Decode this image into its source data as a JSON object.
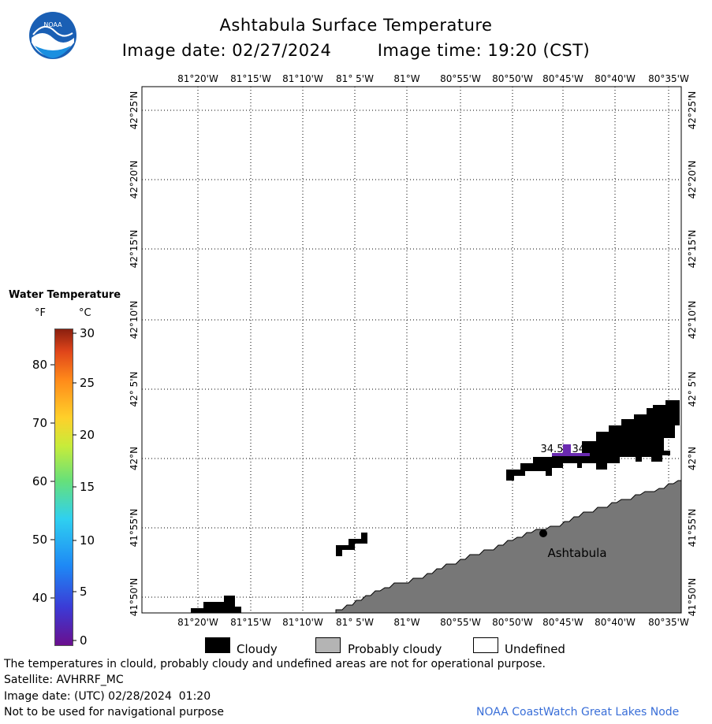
{
  "header": {
    "title": "Ashtabula Surface Temperature",
    "date_label": "Image date: 02/27/2024",
    "time_label": "Image time: 19:20 (CST)"
  },
  "logo": {
    "text": "NOAA"
  },
  "legend": {
    "title": "Water Temperature",
    "unit_f": "°F",
    "unit_c": "°C",
    "f_ticks": [
      "80",
      "70",
      "60",
      "50",
      "40"
    ],
    "c_ticks": [
      "30",
      "25",
      "20",
      "15",
      "10",
      "5",
      "0"
    ],
    "colors": [
      "#6a0f8e",
      "#3b3bd6",
      "#1e88f5",
      "#2fd0f0",
      "#66e07a",
      "#c7ec3a",
      "#ffd02a",
      "#ff8a1a",
      "#e0451a",
      "#8a1f0f"
    ]
  },
  "map": {
    "lon_labels": [
      "81°20'W",
      "81°15'W",
      "81°10'W",
      "81° 5'W",
      "81°W",
      "80°55'W",
      "80°50'W",
      "80°45'W",
      "80°40'W",
      "80°35'W"
    ],
    "lat_labels": [
      "42°25'N",
      "42°20'N",
      "42°15'N",
      "42°10'N",
      "42° 5'N",
      "42°N",
      "41°55'N",
      "41°50'N"
    ],
    "readings": [
      "34.5",
      "34.5"
    ],
    "city": "Ashtabula",
    "colors": {
      "cloudy": "#000000",
      "probably_cloudy": "#777777",
      "reading_bar": "#6a2ab0"
    }
  },
  "key": {
    "cloudy": "Cloudy",
    "probably_cloudy": "Probably cloudy",
    "undefined": "Undefined"
  },
  "footer": {
    "warning": "The temperatures in clould, probably cloudy and undefined areas are not for operational purpose.",
    "satellite": "Satellite: AVHRRF_MC",
    "utc_date": "Image date: (UTC) 02/28/2024  01:20",
    "nav_warning": "Not to be used for navigational purpose",
    "node": "NOAA CoastWatch Great Lakes Node"
  }
}
